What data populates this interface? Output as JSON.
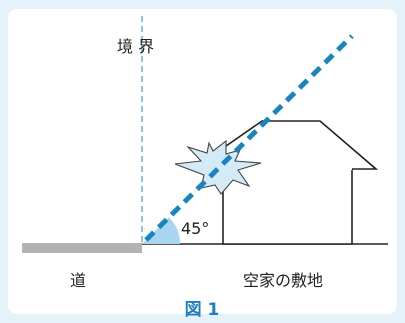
{
  "labels": {
    "boundary": "境 界",
    "angle": "45°",
    "road": "道",
    "vacant_lot": "空家の敷地"
  },
  "caption": "図 1",
  "colors": {
    "background": "#e6f2fa",
    "card": "#ffffff",
    "ray": "#1a84c0",
    "boundary_line": "#4aa3d6",
    "road": "#b3b3b3",
    "angle_fill": "#a9d6ef",
    "flash_fill": "#d4ebf7",
    "caption": "#1e7fc0"
  },
  "icons": {
    "flash": "starburst-icon"
  }
}
